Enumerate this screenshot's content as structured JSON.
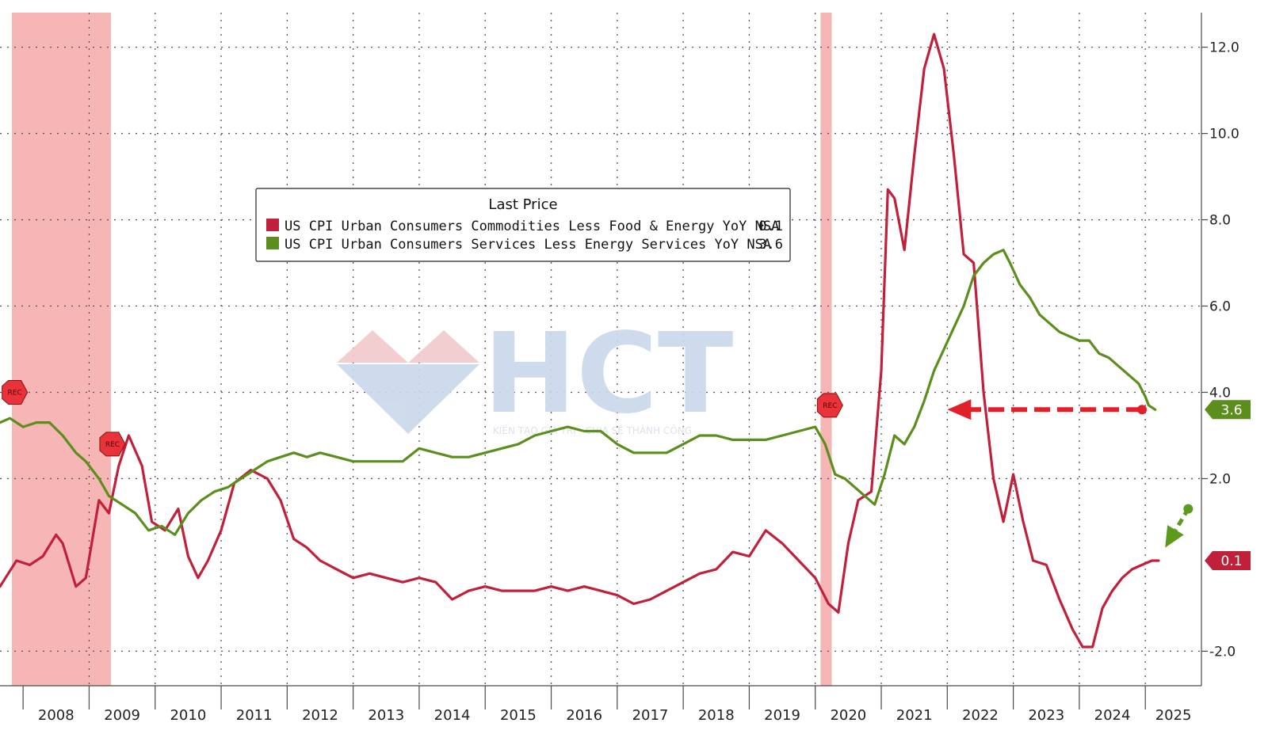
{
  "chart_data": {
    "type": "line",
    "title": "",
    "xlabel": "",
    "ylabel": "",
    "xlim": [
      2007.65,
      2025.85
    ],
    "ylim": [
      -2.8,
      12.8
    ],
    "yticks": [
      -2.0,
      2.0,
      4.0,
      6.0,
      8.0,
      10.0,
      12.0
    ],
    "ytick_labels": [
      "-2.0",
      "2.0",
      "4.0",
      "6.0",
      "8.0",
      "10.0",
      "12.0"
    ],
    "year_labels": [
      "2008",
      "2009",
      "2010",
      "2011",
      "2012",
      "2013",
      "2014",
      "2015",
      "2016",
      "2017",
      "2018",
      "2019",
      "2020",
      "2021",
      "2022",
      "2023",
      "2024",
      "2025"
    ],
    "grid": true,
    "legend": {
      "title": "Last Price",
      "placement": "top-center"
    },
    "recessions": [
      {
        "start": 2007.83,
        "end": 2009.33
      },
      {
        "start": 2020.08,
        "end": 2020.25
      }
    ],
    "recession_markers": [
      {
        "x": 2007.85,
        "y": 4.0,
        "label": "REC"
      },
      {
        "x": 2009.33,
        "y": 2.8,
        "label": "REC"
      },
      {
        "x": 2020.2,
        "y": 3.7,
        "label": "REC"
      }
    ],
    "series": [
      {
        "name": "US CPI Urban Consumers Commodities Less Food & Energy YoY NSA",
        "last": "0.1",
        "color": "#c0203a",
        "x": [
          2007.65,
          2007.9,
          2008.1,
          2008.3,
          2008.5,
          2008.6,
          2008.8,
          2008.95,
          2009.15,
          2009.3,
          2009.45,
          2009.6,
          2009.8,
          2009.95,
          2010.15,
          2010.35,
          2010.5,
          2010.65,
          2010.8,
          2011.0,
          2011.2,
          2011.45,
          2011.7,
          2011.9,
          2012.1,
          2012.3,
          2012.5,
          2012.75,
          2013.0,
          2013.25,
          2013.5,
          2013.75,
          2014.0,
          2014.25,
          2014.5,
          2014.75,
          2015.0,
          2015.25,
          2015.5,
          2015.75,
          2016.0,
          2016.25,
          2016.5,
          2016.75,
          2017.0,
          2017.25,
          2017.5,
          2017.75,
          2018.0,
          2018.25,
          2018.5,
          2018.75,
          2019.0,
          2019.25,
          2019.5,
          2019.75,
          2020.0,
          2020.2,
          2020.35,
          2020.5,
          2020.65,
          2020.85,
          2021.0,
          2021.1,
          2021.2,
          2021.35,
          2021.5,
          2021.65,
          2021.8,
          2021.95,
          2022.1,
          2022.25,
          2022.4,
          2022.55,
          2022.7,
          2022.85,
          2023.0,
          2023.15,
          2023.3,
          2023.5,
          2023.7,
          2023.9,
          2024.05,
          2024.2,
          2024.35,
          2024.5,
          2024.65,
          2024.8,
          2024.95,
          2025.1,
          2025.2
        ],
        "y": [
          -0.5,
          0.1,
          0.0,
          0.2,
          0.7,
          0.5,
          -0.5,
          -0.3,
          1.5,
          1.2,
          2.3,
          3.0,
          2.3,
          1.0,
          0.8,
          1.3,
          0.2,
          -0.3,
          0.1,
          0.8,
          1.9,
          2.2,
          2.0,
          1.5,
          0.6,
          0.4,
          0.1,
          -0.1,
          -0.3,
          -0.2,
          -0.3,
          -0.4,
          -0.3,
          -0.4,
          -0.8,
          -0.6,
          -0.5,
          -0.6,
          -0.6,
          -0.6,
          -0.5,
          -0.6,
          -0.5,
          -0.6,
          -0.7,
          -0.9,
          -0.8,
          -0.6,
          -0.4,
          -0.2,
          -0.1,
          0.3,
          0.2,
          0.8,
          0.5,
          0.1,
          -0.3,
          -0.9,
          -1.1,
          0.5,
          1.5,
          1.7,
          4.5,
          8.7,
          8.5,
          7.3,
          9.5,
          11.5,
          12.3,
          11.5,
          9.5,
          7.2,
          7.0,
          4.0,
          2.0,
          1.0,
          2.1,
          1.0,
          0.1,
          0.0,
          -0.8,
          -1.5,
          -1.9,
          -1.9,
          -1.0,
          -0.6,
          -0.3,
          -0.1,
          0.0,
          0.1,
          0.1
        ]
      },
      {
        "name": "US CPI Urban Consumers Services Less Energy Services YoY NSA",
        "last": "3.6",
        "color": "#5c8e1e",
        "x": [
          2007.65,
          2007.8,
          2008.0,
          2008.2,
          2008.4,
          2008.6,
          2008.8,
          2008.95,
          2009.15,
          2009.3,
          2009.5,
          2009.7,
          2009.9,
          2010.1,
          2010.3,
          2010.5,
          2010.7,
          2010.9,
          2011.1,
          2011.3,
          2011.5,
          2011.7,
          2011.9,
          2012.1,
          2012.3,
          2012.5,
          2012.75,
          2013.0,
          2013.25,
          2013.5,
          2013.75,
          2014.0,
          2014.25,
          2014.5,
          2014.75,
          2015.0,
          2015.25,
          2015.5,
          2015.75,
          2016.0,
          2016.25,
          2016.5,
          2016.75,
          2017.0,
          2017.25,
          2017.5,
          2017.75,
          2018.0,
          2018.25,
          2018.5,
          2018.75,
          2019.0,
          2019.25,
          2019.5,
          2019.75,
          2020.0,
          2020.15,
          2020.3,
          2020.45,
          2020.6,
          2020.75,
          2020.9,
          2021.05,
          2021.2,
          2021.35,
          2021.5,
          2021.65,
          2021.8,
          2021.95,
          2022.1,
          2022.25,
          2022.4,
          2022.55,
          2022.7,
          2022.85,
          2022.95,
          2023.1,
          2023.25,
          2023.4,
          2023.55,
          2023.7,
          2023.85,
          2024.0,
          2024.15,
          2024.3,
          2024.45,
          2024.6,
          2024.75,
          2024.9,
          2025.0,
          2025.05,
          2025.15
        ],
        "y": [
          3.3,
          3.4,
          3.2,
          3.3,
          3.3,
          3.0,
          2.6,
          2.4,
          2.0,
          1.6,
          1.4,
          1.2,
          0.8,
          0.9,
          0.7,
          1.2,
          1.5,
          1.7,
          1.8,
          2.0,
          2.2,
          2.4,
          2.5,
          2.6,
          2.5,
          2.6,
          2.5,
          2.4,
          2.4,
          2.4,
          2.4,
          2.7,
          2.6,
          2.5,
          2.5,
          2.6,
          2.7,
          2.8,
          3.0,
          3.1,
          3.2,
          3.1,
          3.1,
          2.8,
          2.6,
          2.6,
          2.6,
          2.8,
          3.0,
          3.0,
          2.9,
          2.9,
          2.9,
          3.0,
          3.1,
          3.2,
          2.8,
          2.1,
          2.0,
          1.8,
          1.6,
          1.4,
          2.1,
          3.0,
          2.8,
          3.2,
          3.8,
          4.5,
          5.0,
          5.5,
          6.0,
          6.7,
          7.0,
          7.2,
          7.3,
          7.0,
          6.5,
          6.2,
          5.8,
          5.6,
          5.4,
          5.3,
          5.2,
          5.2,
          4.9,
          4.8,
          4.6,
          4.4,
          4.2,
          3.9,
          3.7,
          3.6
        ]
      }
    ]
  },
  "annotations": {
    "arrow_red_from": [
      2024.95,
      3.6
    ],
    "arrow_red_to": [
      2022.0,
      3.6
    ],
    "arrow_green_from": [
      2025.65,
      1.3
    ],
    "arrow_green_to": [
      2025.3,
      0.4
    ]
  },
  "watermark": {
    "brand": "HCT",
    "tagline": "KIẾN TẠO GIÁ TRỊ - CHIA SẺ THÀNH CÔNG"
  }
}
